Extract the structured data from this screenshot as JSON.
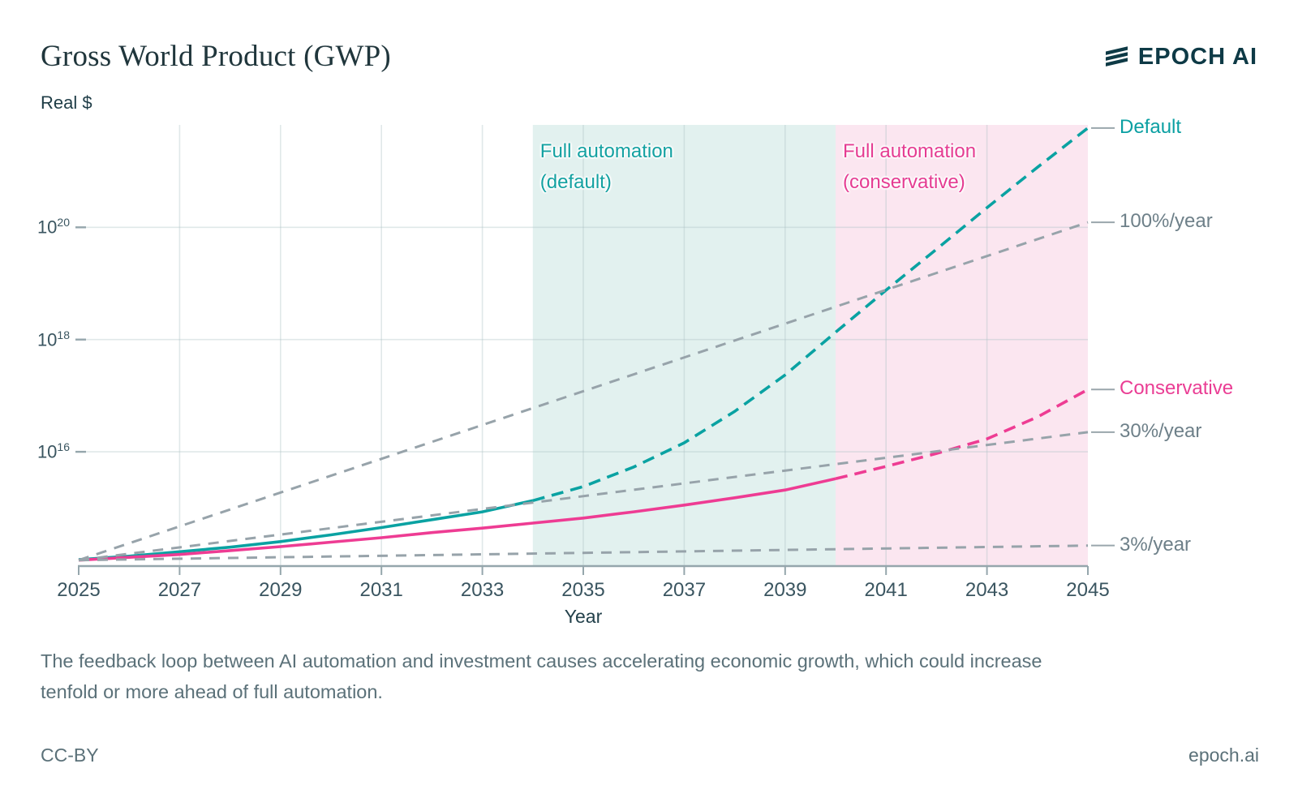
{
  "header": {
    "title": "Gross World Product (GWP)",
    "brand": "EPOCH AI"
  },
  "chart_data": {
    "type": "line",
    "title": "Gross World Product (GWP)",
    "ylabel": "Real $",
    "xlabel": "Year",
    "y_scale": "log10",
    "x_range": [
      2025,
      2045
    ],
    "y_log_range": [
      13.9,
      21.85
    ],
    "x_ticks": [
      2025,
      2027,
      2029,
      2031,
      2033,
      2035,
      2037,
      2039,
      2041,
      2043,
      2045
    ],
    "y_tick_exponents": [
      16,
      18,
      20
    ],
    "grid": "on",
    "legend_position": "right-edge-labels",
    "units_note": "points are [year, log10 of GWP in real dollars]",
    "regions": [
      {
        "name": "full-automation-default",
        "label_lines": [
          "Full automation",
          "(default)"
        ],
        "x_start": 2034,
        "x_end": 2040,
        "fill": "#e2f1ef",
        "label_color": "#13a1a1"
      },
      {
        "name": "full-automation-conservative",
        "label_lines": [
          "Full automation",
          "(conservative)"
        ],
        "x_start": 2040,
        "x_end": 2045,
        "fill": "#fbe6f0",
        "label_color": "#e53c92"
      }
    ],
    "series": [
      {
        "name": "Default",
        "color": "#0aa2a2",
        "label_color": "#0a9fa2",
        "style": "main",
        "dashed_from": 2034,
        "points": [
          [
            2025,
            14.08
          ],
          [
            2026,
            14.14
          ],
          [
            2027,
            14.22
          ],
          [
            2028,
            14.3
          ],
          [
            2029,
            14.4
          ],
          [
            2030,
            14.52
          ],
          [
            2031,
            14.65
          ],
          [
            2032,
            14.79
          ],
          [
            2033,
            14.93
          ],
          [
            2034,
            15.13
          ],
          [
            2035,
            15.38
          ],
          [
            2036,
            15.73
          ],
          [
            2037,
            16.16
          ],
          [
            2038,
            16.72
          ],
          [
            2039,
            17.37
          ],
          [
            2040,
            18.13
          ],
          [
            2041,
            18.88
          ],
          [
            2042,
            19.61
          ],
          [
            2043,
            20.35
          ],
          [
            2044,
            21.07
          ],
          [
            2045,
            21.77
          ]
        ]
      },
      {
        "name": "Conservative",
        "color": "#ee3c93",
        "label_color": "#ea3d94",
        "style": "main",
        "dashed_from": 2040,
        "points": [
          [
            2025,
            14.07
          ],
          [
            2026,
            14.12
          ],
          [
            2027,
            14.17
          ],
          [
            2028,
            14.24
          ],
          [
            2029,
            14.31
          ],
          [
            2030,
            14.39
          ],
          [
            2031,
            14.47
          ],
          [
            2032,
            14.56
          ],
          [
            2033,
            14.64
          ],
          [
            2034,
            14.73
          ],
          [
            2035,
            14.82
          ],
          [
            2036,
            14.93
          ],
          [
            2037,
            15.05
          ],
          [
            2038,
            15.18
          ],
          [
            2039,
            15.32
          ],
          [
            2040,
            15.52
          ],
          [
            2041,
            15.74
          ],
          [
            2042,
            15.97
          ],
          [
            2043,
            16.23
          ],
          [
            2044,
            16.62
          ],
          [
            2045,
            17.11
          ]
        ]
      },
      {
        "name": "100%/year",
        "color": "#97a3aa",
        "label_color": "#6e8089",
        "style": "reference",
        "dashed_from": 2025,
        "points": [
          [
            2025,
            14.07
          ],
          [
            2045,
            20.09
          ]
        ]
      },
      {
        "name": "30%/year",
        "color": "#97a3aa",
        "label_color": "#6e8089",
        "style": "reference",
        "dashed_from": 2025,
        "points": [
          [
            2025,
            14.07
          ],
          [
            2045,
            16.35
          ]
        ]
      },
      {
        "name": "3%/year",
        "color": "#97a3aa",
        "label_color": "#6e8089",
        "style": "reference",
        "dashed_from": 2025,
        "points": [
          [
            2025,
            14.07
          ],
          [
            2045,
            14.33
          ]
        ]
      }
    ]
  },
  "caption": {
    "line1": "The feedback loop between AI automation and investment causes accelerating economic growth, which could increase",
    "line2": "tenfold or more ahead of full automation."
  },
  "footer": {
    "license": "CC-BY",
    "site": "epoch.ai"
  }
}
